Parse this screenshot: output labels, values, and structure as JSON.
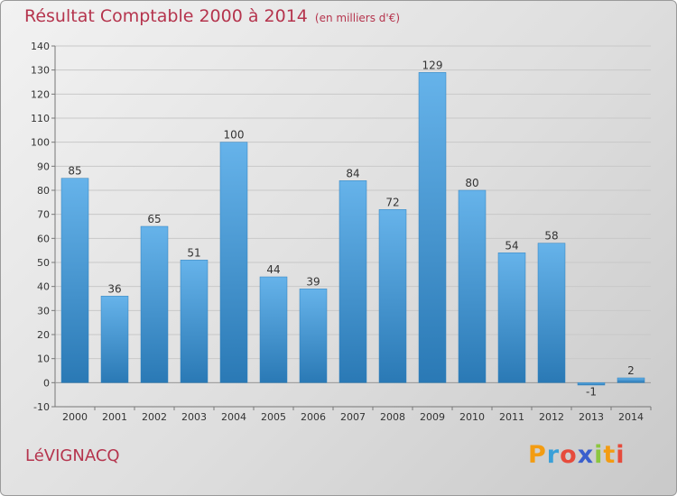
{
  "title": "Résultat Comptable 2000 à 2014",
  "unit": "(en milliers d'€)",
  "commune": "LéVIGNACQ",
  "logo": {
    "letters": [
      "P",
      "r",
      "o",
      "x",
      "i",
      "t",
      "i"
    ],
    "colors": [
      "#f39c12",
      "#3aa0d8",
      "#e64b3c",
      "#3a5fcd",
      "#8cc63f",
      "#f39c12",
      "#e64b3c"
    ]
  },
  "colors": {
    "bar_light": "#66b3ea",
    "bar_dark": "#2a79b5",
    "title": "#b5344d"
  },
  "chart_data": {
    "type": "bar",
    "title": "Résultat Comptable 2000 à 2014",
    "subtitle": "(en milliers d'€)",
    "xlabel": "",
    "ylabel": "",
    "categories": [
      "2000",
      "2001",
      "2002",
      "2003",
      "2004",
      "2005",
      "2006",
      "2007",
      "2008",
      "2009",
      "2010",
      "2011",
      "2012",
      "2013",
      "2014"
    ],
    "values": [
      85,
      36,
      65,
      51,
      100,
      44,
      39,
      84,
      72,
      129,
      80,
      54,
      58,
      -1,
      2
    ],
    "data_labels": [
      "85",
      "36",
      "65",
      "51",
      "100",
      "44",
      "39",
      "84",
      "72",
      "129",
      "80",
      "54",
      "58",
      "-1",
      "2"
    ],
    "ylim": [
      -10,
      140
    ],
    "yticks": [
      -10,
      0,
      10,
      20,
      30,
      40,
      50,
      60,
      70,
      80,
      90,
      100,
      110,
      120,
      130,
      140
    ],
    "ytick_labels": [
      "-10",
      "0",
      "10",
      "20",
      "30",
      "40",
      "50",
      "60",
      "70",
      "80",
      "90",
      "100",
      "110",
      "120",
      "130",
      "140"
    ],
    "grid": true
  }
}
